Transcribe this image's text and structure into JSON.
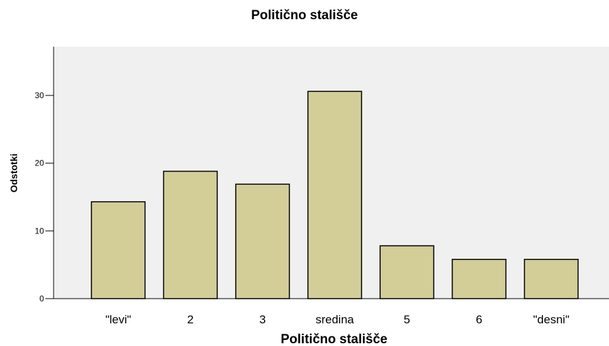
{
  "chart_data": {
    "type": "bar",
    "title": "Politično stališče",
    "xlabel": "Politično stališče",
    "ylabel": "Odstotki",
    "categories": [
      "\"levi\"",
      "2",
      "3",
      "sredina",
      "5",
      "6",
      "\"desni\""
    ],
    "values": [
      14.3,
      18.8,
      16.9,
      30.6,
      7.8,
      5.8,
      5.8
    ],
    "ylim": [
      0,
      37.2
    ],
    "yticks": [
      0,
      10,
      20,
      30
    ],
    "grid": false,
    "legend": "none",
    "bar_color": "#d3cd98",
    "plot_background": "#f0f0f0"
  }
}
